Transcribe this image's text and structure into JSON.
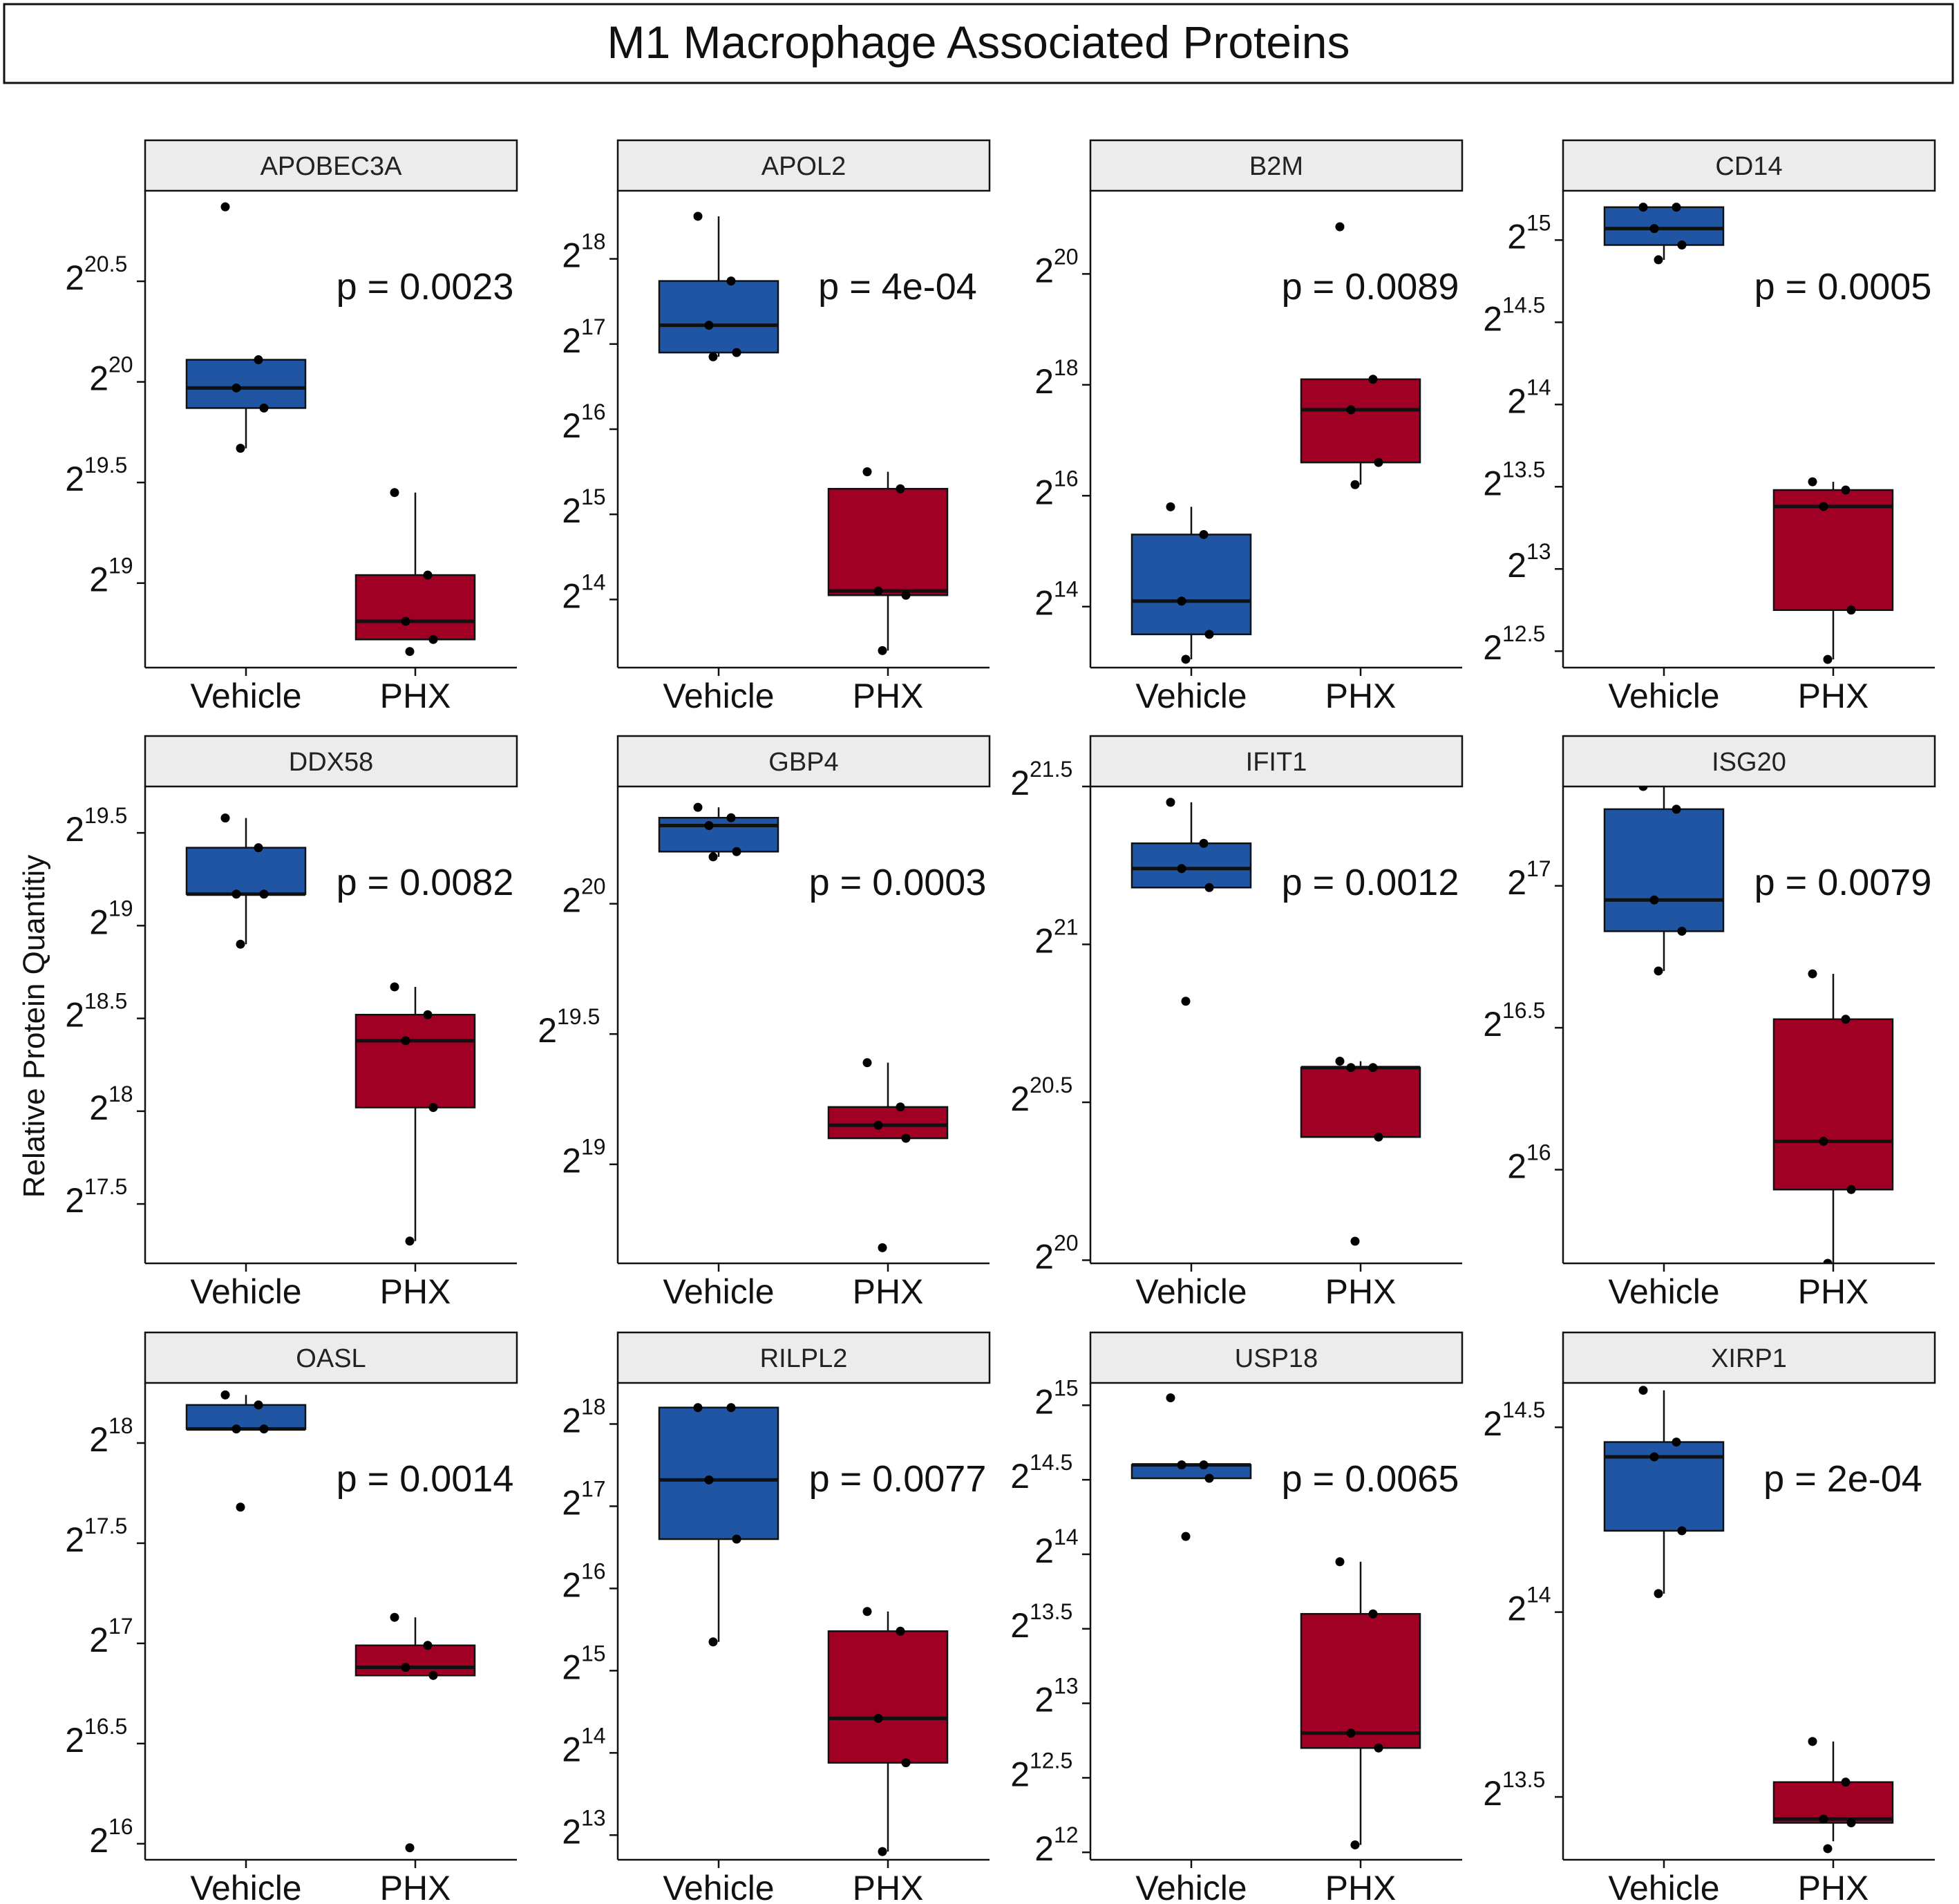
{
  "figure_title": "M1 Macrophage Associated Proteins",
  "y_axis_label": "Relative Protein Quantitiy",
  "colors": {
    "vehicle": "#1f55a3",
    "phx": "#a00024",
    "strip": "#ececec",
    "line": "#111111"
  },
  "chart_data": [
    {
      "type": "box",
      "title": "APOBEC3A",
      "p_label": "p = 0.0023",
      "categories": [
        "Vehicle",
        "PHX"
      ],
      "y_scale": "log2",
      "ylim": [
        18.58,
        20.95
      ],
      "yticks": [
        19,
        19.5,
        20,
        20.5
      ],
      "ytick_labels": [
        {
          "base": "2",
          "exp": "19"
        },
        {
          "base": "2",
          "exp": "19.5"
        },
        {
          "base": "2",
          "exp": "20"
        },
        {
          "base": "2",
          "exp": "20.5"
        }
      ],
      "boxes": [
        {
          "min": 19.67,
          "q1": 19.87,
          "median": 19.97,
          "q3": 20.11,
          "max": 20.11
        },
        {
          "min": 18.72,
          "q1": 18.72,
          "median": 18.81,
          "q3": 19.04,
          "max": 19.45
        }
      ],
      "points": [
        [
          20.87,
          20.11,
          19.97,
          19.87,
          19.67
        ],
        [
          19.45,
          19.04,
          18.81,
          18.72,
          18.66
        ]
      ]
    },
    {
      "type": "box",
      "title": "APOL2",
      "p_label": "p = 4e-04",
      "categories": [
        "Vehicle",
        "PHX"
      ],
      "y_scale": "log2",
      "ylim": [
        13.2,
        18.8
      ],
      "yticks": [
        14,
        15,
        16,
        17,
        18
      ],
      "ytick_labels": [
        {
          "base": "2",
          "exp": "14"
        },
        {
          "base": "2",
          "exp": "15"
        },
        {
          "base": "2",
          "exp": "16"
        },
        {
          "base": "2",
          "exp": "17"
        },
        {
          "base": "2",
          "exp": "18"
        }
      ],
      "boxes": [
        {
          "min": 16.85,
          "q1": 16.9,
          "median": 17.22,
          "q3": 17.74,
          "max": 18.5
        },
        {
          "min": 13.4,
          "q1": 14.05,
          "median": 14.1,
          "q3": 15.3,
          "max": 15.5
        }
      ],
      "points": [
        [
          18.5,
          17.74,
          17.22,
          16.9,
          16.85
        ],
        [
          15.5,
          15.3,
          14.1,
          14.05,
          13.4
        ]
      ]
    },
    {
      "type": "box",
      "title": "B2M",
      "p_label": "p = 0.0089",
      "categories": [
        "Vehicle",
        "PHX"
      ],
      "y_scale": "log2",
      "ylim": [
        12.9,
        21.5
      ],
      "yticks": [
        14,
        16,
        18,
        20
      ],
      "ytick_labels": [
        {
          "base": "2",
          "exp": "14"
        },
        {
          "base": "2",
          "exp": "16"
        },
        {
          "base": "2",
          "exp": "18"
        },
        {
          "base": "2",
          "exp": "20"
        }
      ],
      "boxes": [
        {
          "min": 13.05,
          "q1": 13.5,
          "median": 14.1,
          "q3": 15.3,
          "max": 15.8
        },
        {
          "min": 16.2,
          "q1": 16.6,
          "median": 17.55,
          "q3": 18.1,
          "max": 18.1
        }
      ],
      "points": [
        [
          15.8,
          15.3,
          14.1,
          13.5,
          13.05
        ],
        [
          20.85,
          18.1,
          17.55,
          16.6,
          16.2
        ]
      ]
    },
    {
      "type": "box",
      "title": "CD14",
      "p_label": "p = 0.0005",
      "categories": [
        "Vehicle",
        "PHX"
      ],
      "y_scale": "log2",
      "ylim": [
        12.4,
        15.3
      ],
      "yticks": [
        12.5,
        13,
        13.5,
        14,
        14.5,
        15
      ],
      "ytick_labels": [
        {
          "base": "2",
          "exp": "12.5"
        },
        {
          "base": "2",
          "exp": "13"
        },
        {
          "base": "2",
          "exp": "13.5"
        },
        {
          "base": "2",
          "exp": "14"
        },
        {
          "base": "2",
          "exp": "14.5"
        },
        {
          "base": "2",
          "exp": "15"
        }
      ],
      "boxes": [
        {
          "min": 14.88,
          "q1": 14.97,
          "median": 15.07,
          "q3": 15.2,
          "max": 15.2
        },
        {
          "min": 12.45,
          "q1": 12.75,
          "median": 13.38,
          "q3": 13.48,
          "max": 13.53
        }
      ],
      "points": [
        [
          15.2,
          15.2,
          15.07,
          14.97,
          14.88
        ],
        [
          13.53,
          13.48,
          13.38,
          12.75,
          12.45
        ]
      ]
    },
    {
      "type": "box",
      "title": "DDX58",
      "p_label": "p = 0.0082",
      "categories": [
        "Vehicle",
        "PHX"
      ],
      "y_scale": "log2",
      "ylim": [
        17.18,
        19.75
      ],
      "yticks": [
        17.5,
        18,
        18.5,
        19,
        19.5
      ],
      "ytick_labels": [
        {
          "base": "2",
          "exp": "17.5"
        },
        {
          "base": "2",
          "exp": "18"
        },
        {
          "base": "2",
          "exp": "18.5"
        },
        {
          "base": "2",
          "exp": "19"
        },
        {
          "base": "2",
          "exp": "19.5"
        }
      ],
      "boxes": [
        {
          "min": 18.9,
          "q1": 19.17,
          "median": 19.17,
          "q3": 19.42,
          "max": 19.58
        },
        {
          "min": 17.3,
          "q1": 18.02,
          "median": 18.38,
          "q3": 18.52,
          "max": 18.67
        }
      ],
      "points": [
        [
          19.58,
          19.42,
          19.17,
          19.17,
          18.9
        ],
        [
          18.67,
          18.52,
          18.38,
          18.02,
          17.3
        ]
      ]
    },
    {
      "type": "box",
      "title": "GBP4",
      "p_label": "p = 0.0003",
      "categories": [
        "Vehicle",
        "PHX"
      ],
      "y_scale": "log2",
      "ylim": [
        18.62,
        20.45
      ],
      "yticks": [
        19,
        19.5,
        20
      ],
      "ytick_labels": [
        {
          "base": "2",
          "exp": "19"
        },
        {
          "base": "2",
          "exp": "19.5"
        },
        {
          "base": "2",
          "exp": "20"
        }
      ],
      "boxes": [
        {
          "min": 20.18,
          "q1": 20.2,
          "median": 20.3,
          "q3": 20.33,
          "max": 20.37
        },
        {
          "min": 19.1,
          "q1": 19.1,
          "median": 19.15,
          "q3": 19.22,
          "max": 19.39
        }
      ],
      "points": [
        [
          20.37,
          20.33,
          20.3,
          20.2,
          20.18
        ],
        [
          19.39,
          19.22,
          19.15,
          19.1,
          18.68
        ]
      ]
    },
    {
      "type": "box",
      "title": "IFIT1",
      "p_label": "p = 0.0012",
      "categories": [
        "Vehicle",
        "PHX"
      ],
      "y_scale": "log2",
      "ylim": [
        19.99,
        21.5
      ],
      "yticks": [
        20,
        20.5,
        21,
        21.5
      ],
      "ytick_labels": [
        {
          "base": "2",
          "exp": "20"
        },
        {
          "base": "2",
          "exp": "20.5"
        },
        {
          "base": "2",
          "exp": "21"
        },
        {
          "base": "2",
          "exp": "21.5"
        }
      ],
      "boxes": [
        {
          "min": 21.18,
          "q1": 21.18,
          "median": 21.24,
          "q3": 21.32,
          "max": 21.45
        },
        {
          "min": 20.39,
          "q1": 20.39,
          "median": 20.61,
          "q3": 20.61,
          "max": 20.63
        }
      ],
      "points": [
        [
          21.45,
          21.32,
          21.24,
          21.18,
          20.82
        ],
        [
          20.63,
          20.61,
          20.61,
          20.39,
          20.06
        ]
      ]
    },
    {
      "type": "box",
      "title": "ISG20",
      "p_label": "p = 0.0079",
      "categories": [
        "Vehicle",
        "PHX"
      ],
      "y_scale": "log2",
      "ylim": [
        15.67,
        17.35
      ],
      "yticks": [
        16,
        16.5,
        17
      ],
      "ytick_labels": [
        {
          "base": "2",
          "exp": "16"
        },
        {
          "base": "2",
          "exp": "16.5"
        },
        {
          "base": "2",
          "exp": "17"
        }
      ],
      "boxes": [
        {
          "min": 16.7,
          "q1": 16.84,
          "median": 16.95,
          "q3": 17.27,
          "max": 17.35
        },
        {
          "min": 15.67,
          "q1": 15.93,
          "median": 16.1,
          "q3": 16.53,
          "max": 16.69
        }
      ],
      "points": [
        [
          17.35,
          17.27,
          16.95,
          16.84,
          16.7
        ],
        [
          16.69,
          16.53,
          16.1,
          15.93,
          15.67
        ]
      ]
    },
    {
      "type": "box",
      "title": "OASL",
      "p_label": "p = 0.0014",
      "categories": [
        "Vehicle",
        "PHX"
      ],
      "y_scale": "log2",
      "ylim": [
        15.92,
        18.3
      ],
      "yticks": [
        16,
        16.5,
        17,
        17.5,
        18
      ],
      "ytick_labels": [
        {
          "base": "2",
          "exp": "16"
        },
        {
          "base": "2",
          "exp": "16.5"
        },
        {
          "base": "2",
          "exp": "17"
        },
        {
          "base": "2",
          "exp": "17.5"
        },
        {
          "base": "2",
          "exp": "18"
        }
      ],
      "boxes": [
        {
          "min": 18.07,
          "q1": 18.07,
          "median": 18.07,
          "q3": 18.19,
          "max": 18.24
        },
        {
          "min": 16.84,
          "q1": 16.84,
          "median": 16.88,
          "q3": 16.99,
          "max": 17.13
        }
      ],
      "points": [
        [
          18.24,
          18.19,
          18.07,
          18.07,
          17.68
        ],
        [
          17.13,
          16.99,
          16.88,
          16.84,
          15.98
        ]
      ]
    },
    {
      "type": "box",
      "title": "RILPL2",
      "p_label": "p = 0.0077",
      "categories": [
        "Vehicle",
        "PHX"
      ],
      "y_scale": "log2",
      "ylim": [
        12.7,
        18.5
      ],
      "yticks": [
        13,
        14,
        15,
        16,
        17,
        18
      ],
      "ytick_labels": [
        {
          "base": "2",
          "exp": "13"
        },
        {
          "base": "2",
          "exp": "14"
        },
        {
          "base": "2",
          "exp": "15"
        },
        {
          "base": "2",
          "exp": "16"
        },
        {
          "base": "2",
          "exp": "17"
        },
        {
          "base": "2",
          "exp": "18"
        }
      ],
      "boxes": [
        {
          "min": 15.35,
          "q1": 16.6,
          "median": 17.32,
          "q3": 18.2,
          "max": 18.2
        },
        {
          "min": 12.8,
          "q1": 13.88,
          "median": 14.42,
          "q3": 15.48,
          "max": 15.72
        }
      ],
      "points": [
        [
          18.2,
          18.2,
          17.32,
          16.6,
          15.35
        ],
        [
          15.72,
          15.48,
          14.42,
          13.88,
          12.8
        ]
      ]
    },
    {
      "type": "box",
      "title": "USP18",
      "p_label": "p = 0.0065",
      "categories": [
        "Vehicle",
        "PHX"
      ],
      "y_scale": "log2",
      "ylim": [
        11.95,
        15.15
      ],
      "yticks": [
        12,
        12.5,
        13,
        13.5,
        14,
        14.5,
        15
      ],
      "ytick_labels": [
        {
          "base": "2",
          "exp": "12"
        },
        {
          "base": "2",
          "exp": "12.5"
        },
        {
          "base": "2",
          "exp": "13"
        },
        {
          "base": "2",
          "exp": "13.5"
        },
        {
          "base": "2",
          "exp": "14"
        },
        {
          "base": "2",
          "exp": "14.5"
        },
        {
          "base": "2",
          "exp": "15"
        }
      ],
      "boxes": [
        {
          "min": 14.51,
          "q1": 14.51,
          "median": 14.6,
          "q3": 14.6,
          "max": 14.6
        },
        {
          "min": 12.05,
          "q1": 12.7,
          "median": 12.8,
          "q3": 13.6,
          "max": 13.95
        }
      ],
      "points": [
        [
          15.05,
          14.6,
          14.6,
          14.51,
          14.12
        ],
        [
          13.95,
          13.6,
          12.8,
          12.7,
          12.05
        ]
      ]
    },
    {
      "type": "box",
      "title": "XIRP1",
      "p_label": "p = 2e-04",
      "categories": [
        "Vehicle",
        "PHX"
      ],
      "y_scale": "log2",
      "ylim": [
        13.33,
        14.62
      ],
      "yticks": [
        13.5,
        14,
        14.5
      ],
      "ytick_labels": [
        {
          "base": "2",
          "exp": "13.5"
        },
        {
          "base": "2",
          "exp": "14"
        },
        {
          "base": "2",
          "exp": "14.5"
        }
      ],
      "boxes": [
        {
          "min": 14.05,
          "q1": 14.22,
          "median": 14.42,
          "q3": 14.46,
          "max": 14.6
        },
        {
          "min": 13.38,
          "q1": 13.43,
          "median": 13.44,
          "q3": 13.54,
          "max": 13.65
        }
      ],
      "points": [
        [
          14.6,
          14.46,
          14.42,
          14.22,
          14.05
        ],
        [
          13.65,
          13.54,
          13.44,
          13.43,
          13.36
        ]
      ]
    }
  ]
}
